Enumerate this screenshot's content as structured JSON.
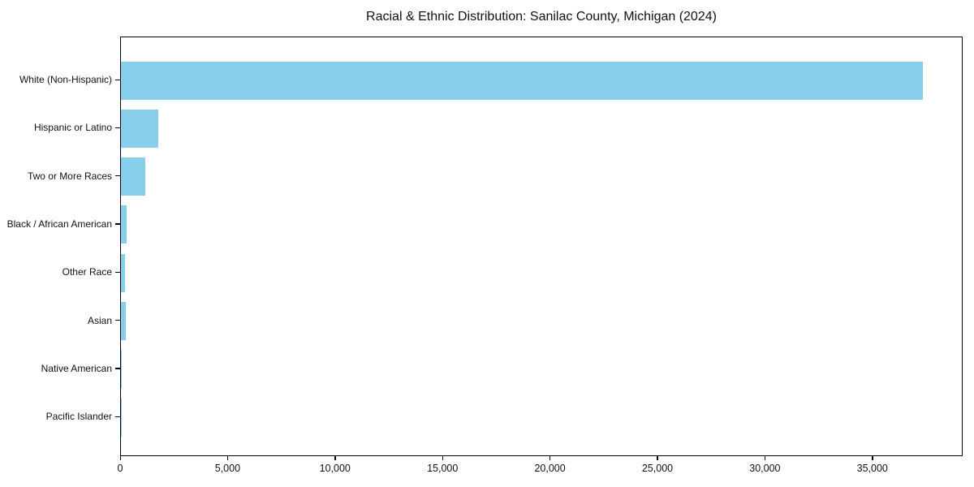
{
  "chart_data": {
    "type": "bar",
    "orientation": "horizontal",
    "title": "Racial & Ethnic Distribution: Sanilac County, Michigan (2024)",
    "categories": [
      "White (Non-Hispanic)",
      "Hispanic or Latino",
      "Two or More Races",
      "Black / African American",
      "Other Race",
      "Asian",
      "Native American",
      "Pacific Islander"
    ],
    "values": [
      37300,
      1720,
      1150,
      250,
      200,
      210,
      20,
      10
    ],
    "xlabel": "",
    "ylabel": "",
    "xlim": [
      0,
      39200
    ],
    "x_ticks": [
      0,
      5000,
      10000,
      15000,
      20000,
      25000,
      30000,
      35000
    ],
    "x_tick_labels": [
      "0",
      "5,000",
      "10,000",
      "15,000",
      "20,000",
      "25,000",
      "30,000",
      "35,000"
    ],
    "bar_color": "#87CEEB",
    "background_color": "#ffffff",
    "text_color": "#111111",
    "grid": false,
    "legend": null,
    "bars_descending_top_to_bottom": true
  }
}
